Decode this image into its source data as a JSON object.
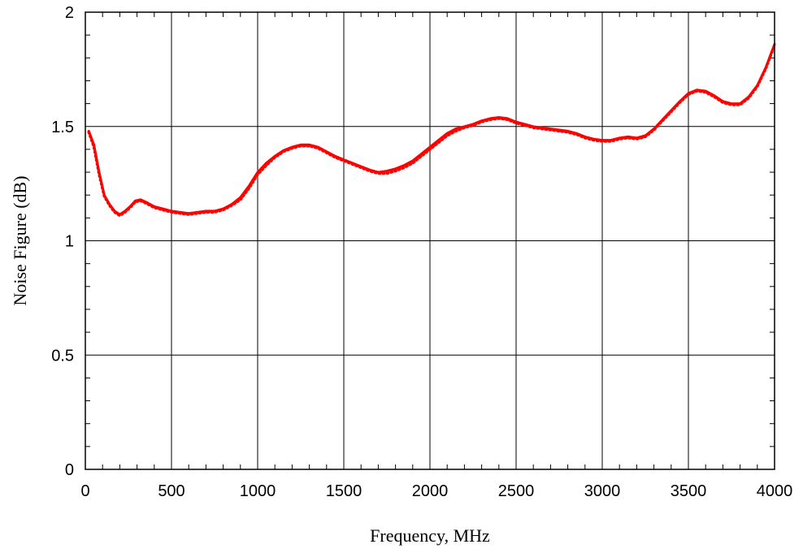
{
  "chart_data": {
    "type": "line",
    "title": "",
    "xlabel": "Frequency, MHz",
    "ylabel": "Noise Figure (dB)",
    "xlim": [
      0,
      4000
    ],
    "ylim": [
      0,
      2
    ],
    "x_ticks": [
      0,
      500,
      1000,
      1500,
      2000,
      2500,
      3000,
      3500,
      4000
    ],
    "y_ticks": [
      0,
      0.5,
      1,
      1.5,
      2
    ],
    "y_tick_labels": [
      "0",
      "0.5",
      "1",
      "1.5",
      "2"
    ],
    "grid": true,
    "colors": {
      "line": "#ff0000",
      "grid": "#000000",
      "axis": "#000000"
    },
    "series": [
      {
        "style": "solid",
        "x": [
          20,
          50,
          80,
          110,
          140,
          170,
          200,
          230,
          260,
          290,
          320,
          350,
          400,
          450,
          500,
          550,
          600,
          650,
          700,
          750,
          800,
          850,
          900,
          950,
          1000,
          1050,
          1100,
          1150,
          1200,
          1250,
          1300,
          1350,
          1400,
          1450,
          1500,
          1550,
          1600,
          1650,
          1700,
          1750,
          1800,
          1850,
          1900,
          1950,
          2000,
          2050,
          2100,
          2150,
          2200,
          2250,
          2300,
          2350,
          2400,
          2450,
          2500,
          2550,
          2600,
          2650,
          2700,
          2750,
          2800,
          2850,
          2900,
          2950,
          3000,
          3050,
          3100,
          3150,
          3200,
          3250,
          3300,
          3350,
          3400,
          3450,
          3500,
          3550,
          3600,
          3650,
          3700,
          3750,
          3800,
          3850,
          3900,
          3950,
          4000
        ],
        "y": [
          1.48,
          1.42,
          1.3,
          1.2,
          1.16,
          1.13,
          1.115,
          1.13,
          1.15,
          1.175,
          1.18,
          1.17,
          1.15,
          1.14,
          1.13,
          1.125,
          1.12,
          1.125,
          1.13,
          1.13,
          1.14,
          1.16,
          1.19,
          1.24,
          1.3,
          1.34,
          1.37,
          1.395,
          1.41,
          1.42,
          1.42,
          1.41,
          1.39,
          1.37,
          1.355,
          1.34,
          1.325,
          1.31,
          1.3,
          1.305,
          1.315,
          1.33,
          1.35,
          1.38,
          1.41,
          1.44,
          1.47,
          1.49,
          1.5,
          1.51,
          1.525,
          1.535,
          1.54,
          1.535,
          1.52,
          1.51,
          1.5,
          1.495,
          1.49,
          1.485,
          1.48,
          1.47,
          1.455,
          1.445,
          1.44,
          1.44,
          1.45,
          1.455,
          1.45,
          1.46,
          1.49,
          1.53,
          1.57,
          1.61,
          1.645,
          1.66,
          1.655,
          1.635,
          1.61,
          1.6,
          1.6,
          1.63,
          1.68,
          1.76,
          1.86
        ]
      },
      {
        "style": "dotted",
        "x": [
          20,
          50,
          80,
          110,
          140,
          170,
          200,
          230,
          260,
          290,
          320,
          350,
          400,
          450,
          500,
          550,
          600,
          650,
          700,
          750,
          800,
          850,
          900,
          950,
          1000,
          1050,
          1100,
          1150,
          1200,
          1250,
          1300,
          1350,
          1400,
          1450,
          1500,
          1550,
          1600,
          1650,
          1700,
          1750,
          1800,
          1850,
          1900,
          1950,
          2000,
          2050,
          2100,
          2150,
          2200,
          2250,
          2300,
          2350,
          2400,
          2450,
          2500,
          2550,
          2600,
          2650,
          2700,
          2750,
          2800,
          2850,
          2900,
          2950,
          3000,
          3050,
          3100,
          3150,
          3200,
          3250,
          3300,
          3350,
          3400,
          3450,
          3500,
          3550,
          3600,
          3650,
          3700,
          3750,
          3800,
          3850,
          3900,
          3950,
          4000
        ],
        "y": [
          1.475,
          1.41,
          1.29,
          1.195,
          1.155,
          1.125,
          1.11,
          1.125,
          1.145,
          1.17,
          1.175,
          1.165,
          1.145,
          1.135,
          1.125,
          1.12,
          1.115,
          1.12,
          1.125,
          1.125,
          1.135,
          1.155,
          1.18,
          1.23,
          1.29,
          1.33,
          1.365,
          1.39,
          1.405,
          1.415,
          1.415,
          1.405,
          1.385,
          1.365,
          1.35,
          1.335,
          1.32,
          1.305,
          1.295,
          1.295,
          1.305,
          1.32,
          1.34,
          1.37,
          1.4,
          1.43,
          1.46,
          1.48,
          1.495,
          1.505,
          1.52,
          1.53,
          1.535,
          1.53,
          1.515,
          1.505,
          1.495,
          1.49,
          1.485,
          1.48,
          1.475,
          1.465,
          1.45,
          1.44,
          1.435,
          1.435,
          1.445,
          1.45,
          1.445,
          1.455,
          1.485,
          1.525,
          1.565,
          1.605,
          1.64,
          1.655,
          1.65,
          1.63,
          1.605,
          1.595,
          1.595,
          1.625,
          1.675,
          1.755,
          1.855
        ]
      }
    ]
  }
}
